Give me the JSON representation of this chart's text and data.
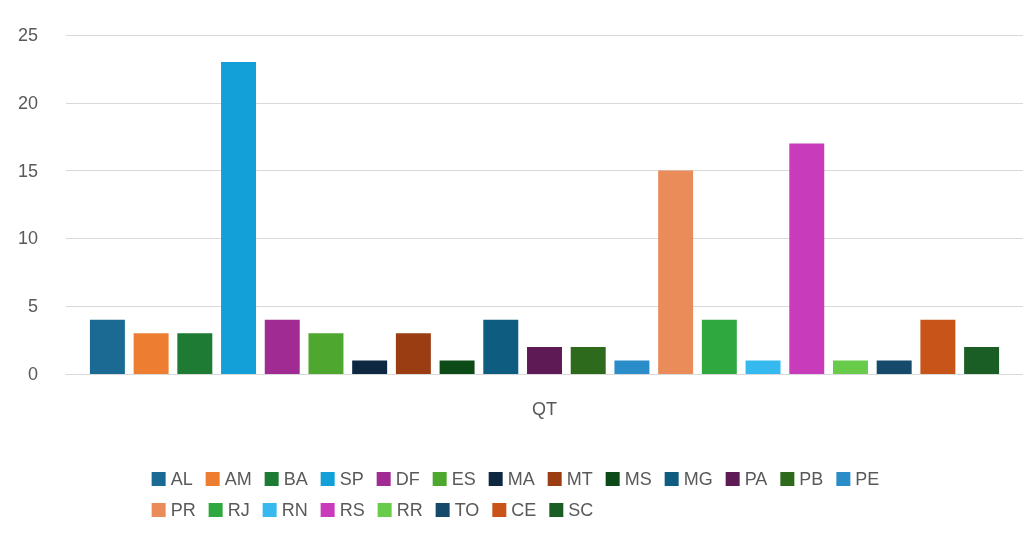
{
  "chart_data": {
    "type": "bar",
    "categories": [
      "QT"
    ],
    "ylim": [
      0,
      25
    ],
    "yticks": [
      0,
      5,
      10,
      15,
      20,
      25
    ],
    "grid": "y",
    "legend": "bottom",
    "series": [
      {
        "name": "AL",
        "color": "#1b6a93",
        "values": [
          4
        ]
      },
      {
        "name": "AM",
        "color": "#ed7d31",
        "values": [
          3
        ]
      },
      {
        "name": "BA",
        "color": "#1e7b34",
        "values": [
          3
        ]
      },
      {
        "name": "SP",
        "color": "#13a0d8",
        "values": [
          23
        ]
      },
      {
        "name": "DF",
        "color": "#a02b93",
        "values": [
          4
        ]
      },
      {
        "name": "ES",
        "color": "#4ea72e",
        "values": [
          3
        ]
      },
      {
        "name": "MA",
        "color": "#0e2841",
        "values": [
          1
        ]
      },
      {
        "name": "MT",
        "color": "#9a3d12",
        "values": [
          3
        ]
      },
      {
        "name": "MS",
        "color": "#0c4a18",
        "values": [
          1
        ]
      },
      {
        "name": "MG",
        "color": "#0e5d80",
        "values": [
          4
        ]
      },
      {
        "name": "PA",
        "color": "#5e1a55",
        "values": [
          2
        ]
      },
      {
        "name": "PB",
        "color": "#2d6a1c",
        "values": [
          2
        ]
      },
      {
        "name": "PE",
        "color": "#2a8cc8",
        "values": [
          1
        ]
      },
      {
        "name": "PR",
        "color": "#e98c5a",
        "values": [
          15
        ]
      },
      {
        "name": "RJ",
        "color": "#2fa83f",
        "values": [
          4
        ]
      },
      {
        "name": "RN",
        "color": "#36b9ef",
        "values": [
          1
        ]
      },
      {
        "name": "RS",
        "color": "#c83cbc",
        "values": [
          17
        ]
      },
      {
        "name": "RR",
        "color": "#68cb4a",
        "values": [
          1
        ]
      },
      {
        "name": "TO",
        "color": "#154a6a",
        "values": [
          1
        ]
      },
      {
        "name": "CE",
        "color": "#c9541a",
        "values": [
          4
        ]
      },
      {
        "name": "SC",
        "color": "#1a5e26",
        "values": [
          2
        ]
      }
    ]
  }
}
